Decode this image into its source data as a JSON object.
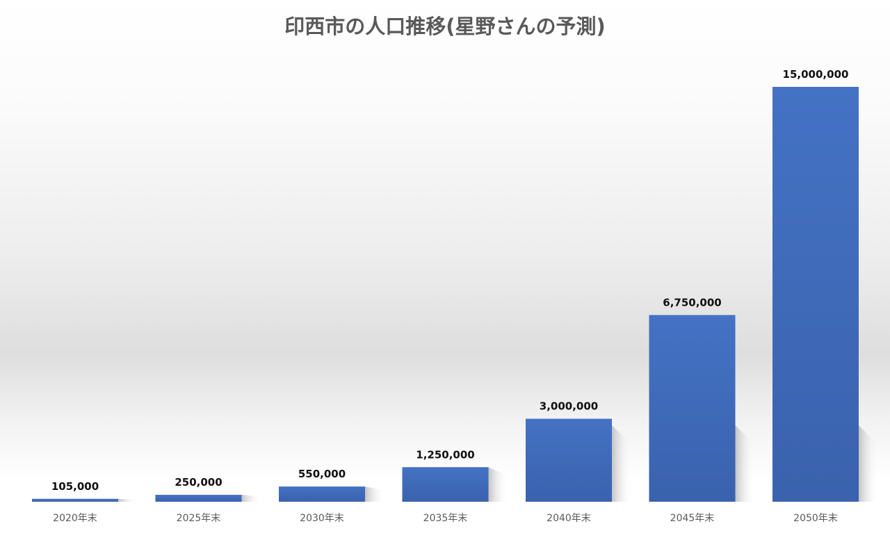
{
  "chart_data": {
    "type": "bar",
    "title": "印西市の人口推移(星野さんの予測)",
    "categories": [
      "2020年末",
      "2025年末",
      "2030年末",
      "2035年末",
      "2040年末",
      "2045年末",
      "2050年末"
    ],
    "values": [
      105000,
      250000,
      550000,
      1250000,
      3000000,
      6750000,
      15000000
    ],
    "data_labels": [
      "105,000",
      "250,000",
      "550,000",
      "1,250,000",
      "3,000,000",
      "6,750,000",
      "15,000,000"
    ],
    "xlabel": "",
    "ylabel": "",
    "ylim": [
      0,
      15000000
    ],
    "grid": false,
    "legend": "none",
    "bar_color": "#4472c4",
    "bar_color_dark": "#3a62ad"
  }
}
